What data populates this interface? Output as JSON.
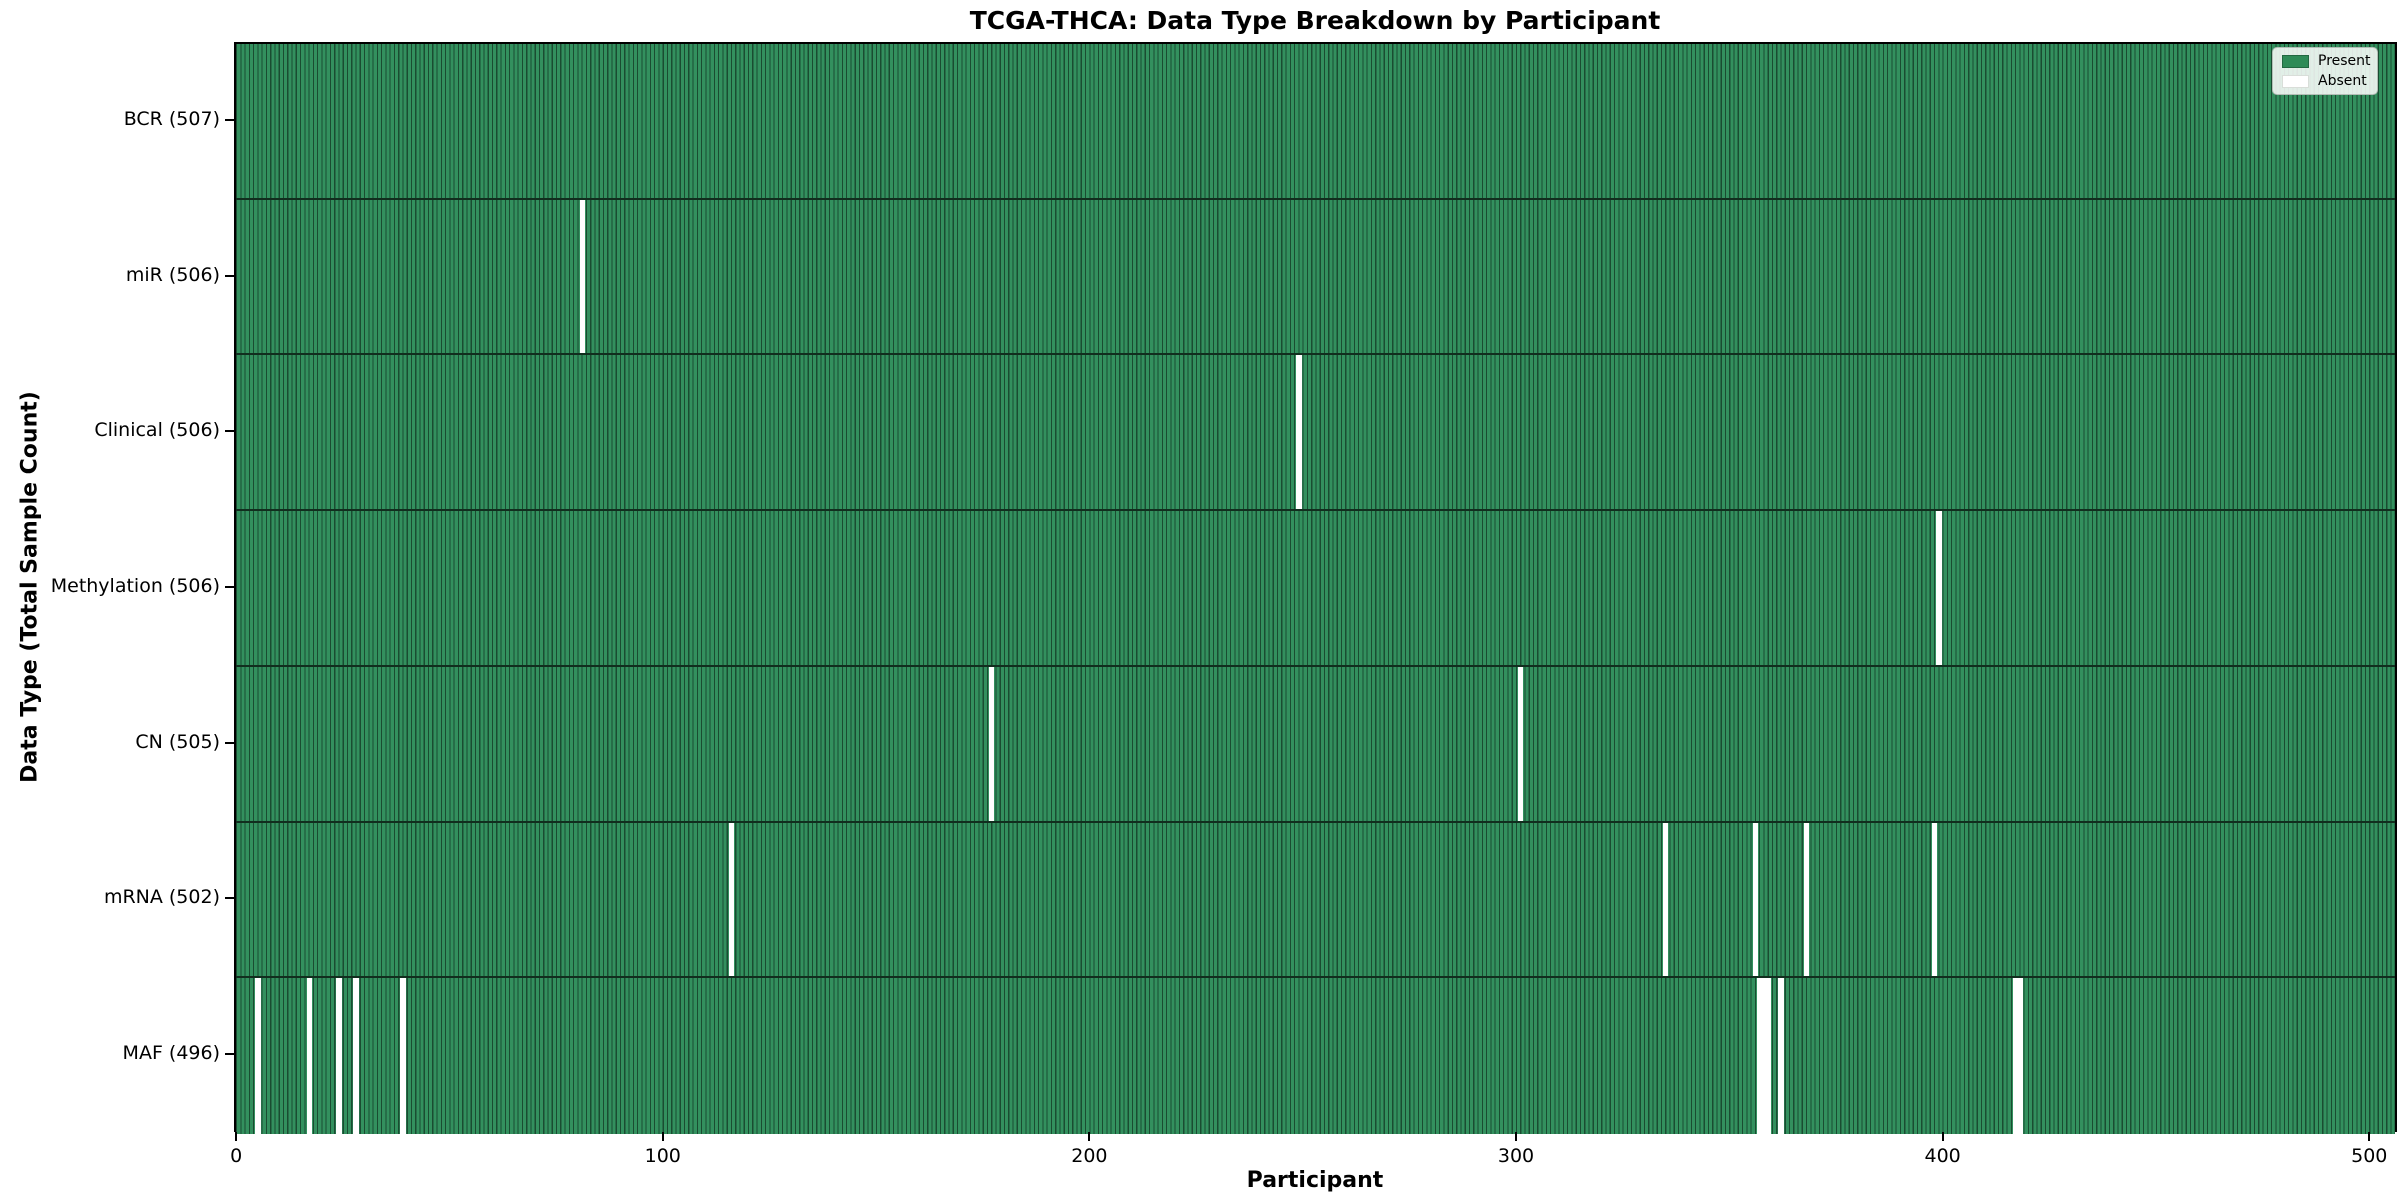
{
  "chart_data": {
    "type": "heatmap",
    "title": "TCGA-THCA: Data Type Breakdown by Participant",
    "xlabel": "Participant",
    "ylabel": "Data Type (Total Sample Count)",
    "n_participants": 507,
    "x_ticks": [
      0,
      100,
      200,
      300,
      400,
      500
    ],
    "x_range": [
      0,
      507
    ],
    "grid": false,
    "legend": {
      "position": "upper right",
      "entries": [
        {
          "label": "Present",
          "color": "#2e8b57"
        },
        {
          "label": "Absent",
          "color": "#ffffff"
        }
      ]
    },
    "colors": {
      "present_fill": "#33905e",
      "bar_edge": "#1a4c31",
      "row_divider": "#112e1e",
      "spine": "#000000",
      "absent_fill": "#ffffff"
    },
    "rows": [
      {
        "data_type": "BCR",
        "label": "BCR (507)",
        "total": 507,
        "absent_participants": []
      },
      {
        "data_type": "miR",
        "label": "miR (506)",
        "total": 506,
        "absent_participants": [
          81
        ]
      },
      {
        "data_type": "Clinical",
        "label": "Clinical (506)",
        "total": 506,
        "absent_participants": [
          249
        ]
      },
      {
        "data_type": "Methylation",
        "label": "Methylation (506)",
        "total": 506,
        "absent_participants": [
          399
        ]
      },
      {
        "data_type": "CN",
        "label": "CN (505)",
        "total": 505,
        "absent_participants": [
          177,
          301
        ]
      },
      {
        "data_type": "mRNA",
        "label": "mRNA (502)",
        "total": 502,
        "absent_participants": [
          116,
          335,
          356,
          368,
          398
        ]
      },
      {
        "data_type": "MAF",
        "label": "MAF (496)",
        "total": 496,
        "absent_participants": [
          5,
          17,
          24,
          28,
          39,
          357,
          358,
          359,
          362,
          417,
          418
        ]
      }
    ]
  }
}
